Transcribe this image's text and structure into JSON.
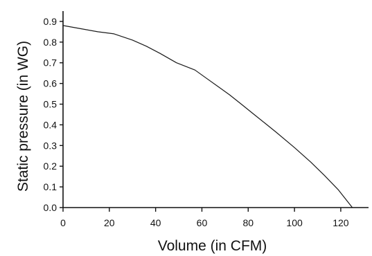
{
  "chart_data": {
    "type": "line",
    "xlabel": "Volume (in CFM)",
    "ylabel": "Static pressure (in WG)",
    "xlim": [
      0,
      132
    ],
    "ylim": [
      0,
      0.95
    ],
    "x_ticks": [
      "0",
      "20",
      "40",
      "60",
      "80",
      "100",
      "120"
    ],
    "y_ticks": [
      "0.0",
      "0.1",
      "0.2",
      "0.3",
      "0.4",
      "0.5",
      "0.6",
      "0.7",
      "0.8",
      "0.9"
    ],
    "grid": false,
    "series": [
      {
        "x": [
          0,
          5,
          10,
          15,
          22,
          30,
          36,
          42,
          49,
          57,
          62,
          67,
          72,
          77,
          82,
          87,
          92,
          100,
          107,
          113,
          119,
          125
        ],
        "y": [
          0.88,
          0.87,
          0.86,
          0.85,
          0.84,
          0.81,
          0.78,
          0.745,
          0.7,
          0.665,
          0.625,
          0.585,
          0.545,
          0.5,
          0.455,
          0.41,
          0.365,
          0.29,
          0.22,
          0.155,
          0.085,
          0.0
        ]
      }
    ],
    "colors": {
      "line": "#1a1a1a",
      "axis": "#111111"
    }
  }
}
